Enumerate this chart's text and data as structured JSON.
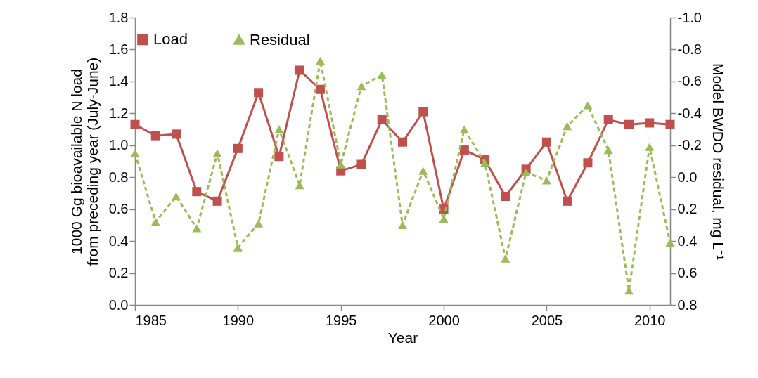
{
  "chart_data": {
    "type": "line",
    "xlabel": "Year",
    "ylabel": "1000 Gg bioavailable N load\nfrom preceding year (July-June)",
    "y2label": "Model BWDO residual, mg L⁻¹",
    "x": [
      1985,
      1986,
      1987,
      1988,
      1989,
      1990,
      1991,
      1992,
      1993,
      1994,
      1995,
      1996,
      1997,
      1998,
      1999,
      2000,
      2001,
      2002,
      2003,
      2004,
      2005,
      2006,
      2007,
      2008,
      2009,
      2010,
      2011
    ],
    "series": [
      {
        "name": "Load",
        "color": "#c0504d",
        "marker": "square",
        "line_style": "solid",
        "values": [
          1.13,
          1.06,
          1.07,
          0.71,
          0.65,
          0.98,
          1.33,
          0.93,
          1.47,
          1.35,
          0.84,
          0.88,
          1.16,
          1.02,
          1.21,
          0.6,
          0.97,
          0.91,
          0.68,
          0.85,
          1.02,
          0.65,
          0.89,
          1.16,
          1.13,
          1.14,
          1.13
        ]
      },
      {
        "name": "Residual",
        "color": "#9bbb59",
        "marker": "triangle",
        "line_style": "dashed",
        "axis": "y2",
        "values": [
          -0.15,
          0.28,
          0.12,
          0.32,
          -0.15,
          0.44,
          0.29,
          -0.3,
          0.05,
          -0.73,
          -0.08,
          -0.57,
          -0.64,
          0.3,
          -0.04,
          0.26,
          -0.3,
          -0.09,
          0.51,
          -0.03,
          0.02,
          -0.32,
          -0.45,
          -0.17,
          0.71,
          -0.19,
          0.41
        ]
      }
    ],
    "xlim": [
      1985,
      2011
    ],
    "xticks": [
      1985,
      1990,
      1995,
      2000,
      2005,
      2010
    ],
    "ylim": [
      0,
      1.8
    ],
    "yticks": [
      {
        "value": 0,
        "label": "0.0"
      },
      0.2,
      0.4,
      0.6,
      0.8,
      {
        "value": 1,
        "label": "1.0"
      },
      1.2,
      1.4,
      1.6,
      1.8
    ],
    "y2lim": [
      0.8,
      -1.0
    ],
    "y2ticks": [
      0.8,
      0.6,
      0.4,
      0.2,
      {
        "value": 0,
        "label": "0.0"
      },
      -0.2,
      -0.4,
      -0.6,
      -0.8,
      {
        "value": -1,
        "label": "-1.0"
      }
    ],
    "grid": false,
    "legend": "top"
  }
}
